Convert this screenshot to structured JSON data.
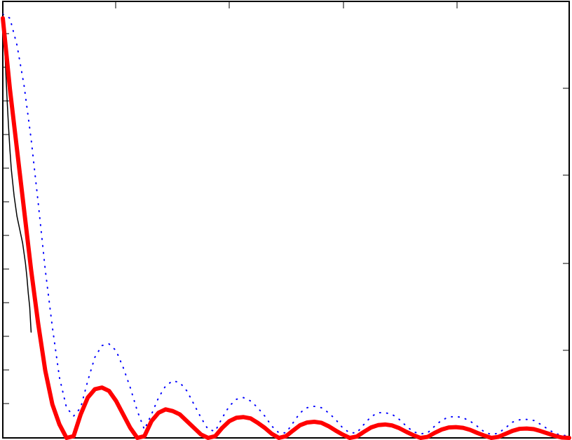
{
  "chart_data": {
    "type": "line",
    "title": "",
    "xlabel": "",
    "ylabel": "",
    "xlim": [
      0,
      8
    ],
    "ylim": [
      0,
      1.3
    ],
    "grid": false,
    "legend": "none",
    "series": [
      {
        "style": "dotted",
        "color": "#0000ff",
        "x": [
          0,
          0.1,
          0.2,
          0.3,
          0.4,
          0.5,
          0.6,
          0.7,
          0.8,
          0.9,
          1.0,
          1.1,
          1.2,
          1.3,
          1.4,
          1.5,
          1.6,
          1.7,
          1.8,
          1.9,
          2.0,
          2.1,
          2.2,
          2.3,
          2.4,
          2.5,
          2.6,
          2.7,
          2.8,
          2.9,
          3.0,
          3.1,
          3.2,
          3.3,
          3.4,
          3.5,
          3.6,
          3.7,
          3.8,
          3.9,
          4.0,
          4.1,
          4.2,
          4.3,
          4.4,
          4.5,
          4.6,
          4.7,
          4.8,
          4.9,
          5.0,
          5.1,
          5.2,
          5.3,
          5.4,
          5.5,
          5.6,
          5.7,
          5.8,
          5.9,
          6.0,
          6.1,
          6.2,
          6.3,
          6.4,
          6.5,
          6.6,
          6.7,
          6.8,
          6.9,
          7.0,
          7.1,
          7.2,
          7.3,
          7.4,
          7.5,
          7.6,
          7.7,
          7.8,
          7.9,
          8.0
        ],
        "values": [
          1.262,
          1.25,
          1.17,
          1.05,
          0.89,
          0.7,
          0.5,
          0.33,
          0.18,
          0.09,
          0.065,
          0.09,
          0.17,
          0.24,
          0.275,
          0.28,
          0.26,
          0.21,
          0.15,
          0.08,
          0.025,
          0.07,
          0.12,
          0.155,
          0.17,
          0.165,
          0.14,
          0.1,
          0.06,
          0.025,
          0.02,
          0.06,
          0.095,
          0.115,
          0.12,
          0.11,
          0.09,
          0.065,
          0.035,
          0.015,
          0.015,
          0.045,
          0.075,
          0.09,
          0.094,
          0.09,
          0.075,
          0.055,
          0.03,
          0.015,
          0.015,
          0.04,
          0.063,
          0.075,
          0.075,
          0.07,
          0.055,
          0.035,
          0.018,
          0.012,
          0.015,
          0.035,
          0.053,
          0.062,
          0.064,
          0.06,
          0.05,
          0.035,
          0.018,
          0.01,
          0.014,
          0.03,
          0.047,
          0.054,
          0.055,
          0.052,
          0.04,
          0.026,
          0.013,
          0.008,
          0.006
        ]
      },
      {
        "style": "solid",
        "color": "#000000",
        "x": [
          0.0,
          0.02,
          0.04,
          0.06,
          0.08,
          0.1,
          0.12,
          0.14,
          0.16,
          0.18,
          0.2,
          0.22,
          0.24,
          0.26,
          0.28,
          0.3,
          0.32,
          0.34,
          0.36,
          0.38,
          0.4
        ],
        "values": [
          1.262,
          1.2,
          1.1,
          1.01,
          0.93,
          0.86,
          0.8,
          0.76,
          0.72,
          0.69,
          0.66,
          0.64,
          0.62,
          0.6,
          0.58,
          0.55,
          0.52,
          0.48,
          0.43,
          0.39,
          0.315
        ]
      },
      {
        "style": "solid-thick",
        "color": "#ff0000",
        "x": [
          0,
          0.1,
          0.2,
          0.3,
          0.4,
          0.5,
          0.6,
          0.7,
          0.8,
          0.9,
          1.0,
          1.1,
          1.2,
          1.3,
          1.4,
          1.5,
          1.6,
          1.7,
          1.8,
          1.9,
          2.0,
          2.1,
          2.2,
          2.3,
          2.4,
          2.5,
          2.6,
          2.7,
          2.8,
          2.9,
          3.0,
          3.1,
          3.2,
          3.3,
          3.4,
          3.5,
          3.6,
          3.7,
          3.8,
          3.9,
          4.0,
          4.1,
          4.2,
          4.3,
          4.4,
          4.5,
          4.6,
          4.7,
          4.8,
          4.9,
          5.0,
          5.1,
          5.2,
          5.3,
          5.4,
          5.5,
          5.6,
          5.7,
          5.8,
          5.9,
          6.0,
          6.1,
          6.2,
          6.3,
          6.4,
          6.5,
          6.6,
          6.7,
          6.8,
          6.9,
          7.0,
          7.1,
          7.2,
          7.3,
          7.4,
          7.5,
          7.6,
          7.7,
          7.8,
          7.9,
          8.0
        ],
        "values": [
          1.25,
          1.04,
          0.86,
          0.68,
          0.5,
          0.34,
          0.2,
          0.1,
          0.04,
          0.0,
          0.005,
          0.07,
          0.12,
          0.145,
          0.15,
          0.14,
          0.11,
          0.07,
          0.03,
          0.0,
          0.005,
          0.05,
          0.075,
          0.085,
          0.08,
          0.07,
          0.05,
          0.03,
          0.01,
          0.0,
          0.005,
          0.03,
          0.05,
          0.06,
          0.062,
          0.058,
          0.045,
          0.03,
          0.012,
          0.0,
          0.005,
          0.022,
          0.038,
          0.046,
          0.048,
          0.045,
          0.035,
          0.022,
          0.01,
          0.0,
          0.004,
          0.018,
          0.031,
          0.038,
          0.04,
          0.037,
          0.029,
          0.018,
          0.008,
          0.0,
          0.003,
          0.015,
          0.025,
          0.031,
          0.032,
          0.03,
          0.024,
          0.015,
          0.007,
          0.0,
          0.003,
          0.012,
          0.021,
          0.027,
          0.028,
          0.026,
          0.02,
          0.013,
          0.006,
          0.001,
          0.0
        ]
      }
    ]
  }
}
